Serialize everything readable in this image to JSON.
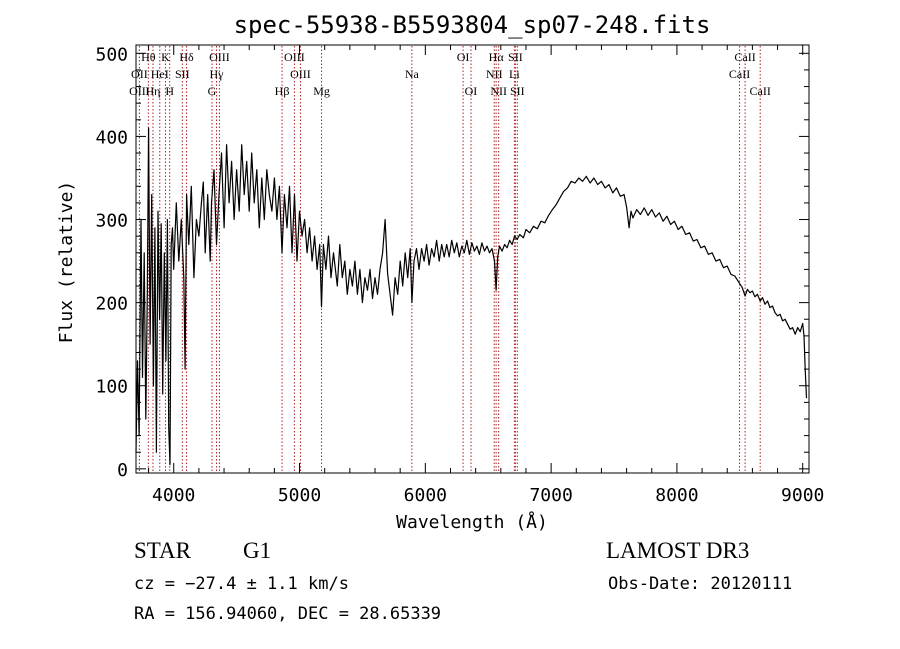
{
  "chart_data": {
    "type": "line",
    "title": "spec-55938-B5593804_sp07-248.fits",
    "xlabel": "Wavelength (Å)",
    "ylabel": "Flux (relative)",
    "xlim": [
      3700,
      9050
    ],
    "ylim": [
      -5,
      510
    ],
    "x_ticks": [
      4000,
      5000,
      6000,
      7000,
      8000,
      9000
    ],
    "y_ticks": [
      0,
      100,
      200,
      300,
      400,
      500
    ],
    "series": [
      {
        "name": "flux",
        "points": [
          [
            3700,
            20
          ],
          [
            3712,
            130
          ],
          [
            3725,
            40
          ],
          [
            3740,
            300
          ],
          [
            3752,
            110
          ],
          [
            3765,
            260
          ],
          [
            3778,
            60
          ],
          [
            3790,
            210
          ],
          [
            3800,
            410
          ],
          [
            3812,
            150
          ],
          [
            3825,
            330
          ],
          [
            3838,
            100
          ],
          [
            3850,
            290
          ],
          [
            3862,
            20
          ],
          [
            3875,
            310
          ],
          [
            3888,
            180
          ],
          [
            3900,
            295
          ],
          [
            3912,
            90
          ],
          [
            3925,
            260
          ],
          [
            3938,
            130
          ],
          [
            3950,
            300
          ],
          [
            3960,
            50
          ],
          [
            3970,
            5
          ],
          [
            3980,
            270
          ],
          [
            3990,
            290
          ],
          [
            4000,
            240
          ],
          [
            4020,
            320
          ],
          [
            4040,
            250
          ],
          [
            4060,
            300
          ],
          [
            4080,
            230
          ],
          [
            4090,
            120
          ],
          [
            4102,
            330
          ],
          [
            4120,
            270
          ],
          [
            4140,
            340
          ],
          [
            4160,
            230
          ],
          [
            4180,
            300
          ],
          [
            4200,
            280
          ],
          [
            4220,
            320
          ],
          [
            4235,
            345
          ],
          [
            4250,
            260
          ],
          [
            4270,
            330
          ],
          [
            4290,
            250
          ],
          [
            4300,
            320
          ],
          [
            4320,
            360
          ],
          [
            4340,
            270
          ],
          [
            4360,
            330
          ],
          [
            4380,
            380
          ],
          [
            4400,
            290
          ],
          [
            4420,
            390
          ],
          [
            4440,
            320
          ],
          [
            4460,
            370
          ],
          [
            4480,
            300
          ],
          [
            4500,
            360
          ],
          [
            4520,
            310
          ],
          [
            4540,
            390
          ],
          [
            4560,
            330
          ],
          [
            4580,
            370
          ],
          [
            4600,
            310
          ],
          [
            4620,
            380
          ],
          [
            4640,
            320
          ],
          [
            4660,
            360
          ],
          [
            4680,
            290
          ],
          [
            4700,
            350
          ],
          [
            4720,
            300
          ],
          [
            4740,
            360
          ],
          [
            4760,
            330
          ],
          [
            4780,
            310
          ],
          [
            4800,
            350
          ],
          [
            4820,
            300
          ],
          [
            4840,
            340
          ],
          [
            4861,
            260
          ],
          [
            4880,
            330
          ],
          [
            4900,
            290
          ],
          [
            4920,
            340
          ],
          [
            4940,
            260
          ],
          [
            4960,
            330
          ],
          [
            4980,
            250
          ],
          [
            5000,
            310
          ],
          [
            5020,
            280
          ],
          [
            5040,
            300
          ],
          [
            5060,
            260
          ],
          [
            5080,
            290
          ],
          [
            5100,
            250
          ],
          [
            5120,
            280
          ],
          [
            5140,
            240
          ],
          [
            5160,
            270
          ],
          [
            5175,
            195
          ],
          [
            5190,
            270
          ],
          [
            5210,
            240
          ],
          [
            5230,
            280
          ],
          [
            5250,
            230
          ],
          [
            5270,
            260
          ],
          [
            5300,
            220
          ],
          [
            5320,
            270
          ],
          [
            5340,
            230
          ],
          [
            5360,
            250
          ],
          [
            5380,
            210
          ],
          [
            5400,
            240
          ],
          [
            5420,
            220
          ],
          [
            5440,
            250
          ],
          [
            5460,
            210
          ],
          [
            5480,
            240
          ],
          [
            5500,
            200
          ],
          [
            5520,
            230
          ],
          [
            5540,
            215
          ],
          [
            5560,
            240
          ],
          [
            5580,
            205
          ],
          [
            5600,
            230
          ],
          [
            5620,
            210
          ],
          [
            5640,
            240
          ],
          [
            5660,
            260
          ],
          [
            5680,
            300
          ],
          [
            5700,
            235
          ],
          [
            5720,
            210
          ],
          [
            5740,
            185
          ],
          [
            5760,
            230
          ],
          [
            5780,
            210
          ],
          [
            5800,
            250
          ],
          [
            5820,
            220
          ],
          [
            5840,
            260
          ],
          [
            5860,
            230
          ],
          [
            5880,
            265
          ],
          [
            5893,
            200
          ],
          [
            5910,
            250
          ],
          [
            5930,
            265
          ],
          [
            5950,
            240
          ],
          [
            5970,
            265
          ],
          [
            5990,
            250
          ],
          [
            6010,
            270
          ],
          [
            6030,
            245
          ],
          [
            6050,
            265
          ],
          [
            6070,
            255
          ],
          [
            6090,
            275
          ],
          [
            6110,
            250
          ],
          [
            6130,
            270
          ],
          [
            6150,
            255
          ],
          [
            6170,
            270
          ],
          [
            6190,
            255
          ],
          [
            6210,
            275
          ],
          [
            6230,
            260
          ],
          [
            6250,
            272
          ],
          [
            6270,
            255
          ],
          [
            6290,
            268
          ],
          [
            6310,
            260
          ],
          [
            6330,
            275
          ],
          [
            6350,
            258
          ],
          [
            6370,
            272
          ],
          [
            6390,
            262
          ],
          [
            6410,
            268
          ],
          [
            6430,
            258
          ],
          [
            6450,
            272
          ],
          [
            6470,
            262
          ],
          [
            6490,
            268
          ],
          [
            6510,
            260
          ],
          [
            6530,
            265
          ],
          [
            6550,
            250
          ],
          [
            6563,
            215
          ],
          [
            6575,
            255
          ],
          [
            6590,
            268
          ],
          [
            6610,
            262
          ],
          [
            6630,
            270
          ],
          [
            6650,
            266
          ],
          [
            6670,
            275
          ],
          [
            6690,
            270
          ],
          [
            6710,
            280
          ],
          [
            6730,
            276
          ],
          [
            6750,
            282
          ],
          [
            6780,
            278
          ],
          [
            6800,
            288
          ],
          [
            6830,
            284
          ],
          [
            6860,
            292
          ],
          [
            6890,
            289
          ],
          [
            6920,
            298
          ],
          [
            6950,
            296
          ],
          [
            6980,
            305
          ],
          [
            7010,
            312
          ],
          [
            7040,
            318
          ],
          [
            7070,
            326
          ],
          [
            7100,
            334
          ],
          [
            7130,
            338
          ],
          [
            7160,
            346
          ],
          [
            7190,
            344
          ],
          [
            7220,
            350
          ],
          [
            7250,
            346
          ],
          [
            7280,
            352
          ],
          [
            7310,
            344
          ],
          [
            7340,
            350
          ],
          [
            7370,
            342
          ],
          [
            7400,
            346
          ],
          [
            7430,
            338
          ],
          [
            7460,
            342
          ],
          [
            7490,
            332
          ],
          [
            7520,
            338
          ],
          [
            7550,
            328
          ],
          [
            7580,
            330
          ],
          [
            7600,
            315
          ],
          [
            7620,
            290
          ],
          [
            7635,
            310
          ],
          [
            7650,
            302
          ],
          [
            7680,
            312
          ],
          [
            7710,
            306
          ],
          [
            7740,
            314
          ],
          [
            7770,
            305
          ],
          [
            7800,
            312
          ],
          [
            7830,
            303
          ],
          [
            7860,
            308
          ],
          [
            7890,
            298
          ],
          [
            7920,
            304
          ],
          [
            7950,
            294
          ],
          [
            7980,
            298
          ],
          [
            8010,
            288
          ],
          [
            8040,
            292
          ],
          [
            8070,
            282
          ],
          [
            8100,
            284
          ],
          [
            8130,
            274
          ],
          [
            8160,
            276
          ],
          [
            8190,
            266
          ],
          [
            8220,
            268
          ],
          [
            8250,
            258
          ],
          [
            8280,
            260
          ],
          [
            8310,
            250
          ],
          [
            8340,
            252
          ],
          [
            8370,
            242
          ],
          [
            8400,
            244
          ],
          [
            8430,
            234
          ],
          [
            8460,
            232
          ],
          [
            8490,
            225
          ],
          [
            8520,
            218
          ],
          [
            8542,
            208
          ],
          [
            8560,
            216
          ],
          [
            8580,
            212
          ],
          [
            8600,
            214
          ],
          [
            8620,
            207
          ],
          [
            8640,
            210
          ],
          [
            8662,
            202
          ],
          [
            8680,
            206
          ],
          [
            8700,
            198
          ],
          [
            8720,
            202
          ],
          [
            8740,
            194
          ],
          [
            8760,
            196
          ],
          [
            8780,
            188
          ],
          [
            8800,
            184
          ],
          [
            8820,
            186
          ],
          [
            8840,
            178
          ],
          [
            8860,
            180
          ],
          [
            8880,
            174
          ],
          [
            8900,
            168
          ],
          [
            8920,
            170
          ],
          [
            8940,
            162
          ],
          [
            8960,
            170
          ],
          [
            8980,
            165
          ],
          [
            9000,
            175
          ],
          [
            9010,
            160
          ],
          [
            9020,
            120
          ],
          [
            9030,
            85
          ]
        ]
      }
    ],
    "line_markers": [
      {
        "label": "Hθ",
        "wavelength": 3798,
        "row": 0
      },
      {
        "label": "OII",
        "wavelength": 3727,
        "row": 1
      },
      {
        "label": "OIII",
        "wavelength": 3727,
        "row": 2
      },
      {
        "label": "Hη",
        "wavelength": 3835,
        "row": 2
      },
      {
        "label": "HeI",
        "wavelength": 3889,
        "row": 1
      },
      {
        "label": "K",
        "wavelength": 3934,
        "row": 0
      },
      {
        "label": "H",
        "wavelength": 3968,
        "row": 2
      },
      {
        "label": "SII",
        "wavelength": 4068,
        "row": 1
      },
      {
        "label": "Hδ",
        "wavelength": 4102,
        "row": 0
      },
      {
        "label": "OIII",
        "wavelength": 4363,
        "row": 0
      },
      {
        "label": "Hγ",
        "wavelength": 4340,
        "row": 1
      },
      {
        "label": "G",
        "wavelength": 4304,
        "row": 2
      },
      {
        "label": "Hβ",
        "wavelength": 4861,
        "row": 2
      },
      {
        "label": "OIII",
        "wavelength": 4959,
        "row": 0
      },
      {
        "label": "OIII",
        "wavelength": 5007,
        "row": 1
      },
      {
        "label": "Mg",
        "wavelength": 5175,
        "row": 2
      },
      {
        "label": "Na",
        "wavelength": 5893,
        "row": 1
      },
      {
        "label": "OI",
        "wavelength": 6300,
        "row": 0
      },
      {
        "label": "OI",
        "wavelength": 6363,
        "row": 2
      },
      {
        "label": "Hα",
        "wavelength": 6563,
        "row": 0
      },
      {
        "label": "NII",
        "wavelength": 6548,
        "row": 1
      },
      {
        "label": "NII",
        "wavelength": 6583,
        "row": 2
      },
      {
        "label": "SII",
        "wavelength": 6716,
        "row": 0
      },
      {
        "label": "Li",
        "wavelength": 6708,
        "row": 1
      },
      {
        "label": "SII",
        "wavelength": 6731,
        "row": 2
      },
      {
        "label": "CaII",
        "wavelength": 8542,
        "row": 0
      },
      {
        "label": "CaII",
        "wavelength": 8498,
        "row": 1
      },
      {
        "label": "CaII",
        "wavelength": 8662,
        "row": 2
      }
    ]
  },
  "info": {
    "object_type": "STAR",
    "object_class": "G1",
    "survey": "LAMOST DR3",
    "cz": "cz = −27.4 ± 1.1 km/s",
    "obs_date": "Obs-Date: 20120111",
    "radec": "RA = 156.94060, DEC =  28.65339"
  },
  "colors": {
    "spectrum": "#000000",
    "marker": "#b22222",
    "axis": "#000000",
    "background": "#ffffff"
  }
}
